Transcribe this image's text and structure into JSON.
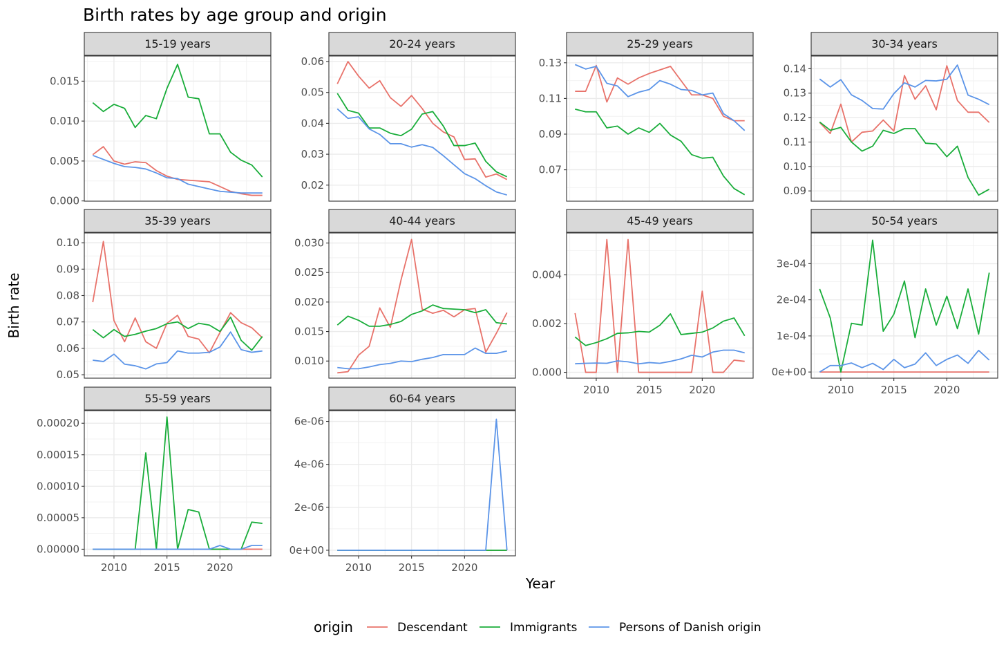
{
  "chart_data": {
    "type": "line",
    "title": "Birth rates by age group and origin",
    "xlabel": "Year",
    "ylabel": "Birth rate",
    "legend": {
      "title": "origin",
      "position": "bottom",
      "entries": [
        "Descendant",
        "Immigrants",
        "Persons of Danish origin"
      ]
    },
    "colors": {
      "Descendant": "#E8726A",
      "Immigrants": "#19AD3A",
      "Persons of Danish origin": "#5B94E8"
    },
    "x": [
      2008,
      2009,
      2010,
      2011,
      2012,
      2013,
      2014,
      2015,
      2016,
      2017,
      2018,
      2019,
      2020,
      2021,
      2022,
      2023,
      2024
    ],
    "xlim": [
      2007.2,
      2024.8
    ],
    "xticks": [
      2010,
      2015,
      2020
    ],
    "facets": [
      {
        "label": "15-19 years",
        "ylim": [
          -3e-05,
          0.01815
        ],
        "yticks": [
          0,
          0.005,
          0.01,
          0.015
        ],
        "ytick_labels": [
          "0.000",
          "0.005",
          "0.010",
          "0.015"
        ],
        "show_x_axis": false,
        "series": [
          {
            "name": "Descendant",
            "values": [
              0.0058,
              0.0068,
              0.005,
              0.0046,
              0.0049,
              0.0048,
              0.0038,
              0.0031,
              0.0027,
              0.0026,
              0.0025,
              0.0024,
              0.0018,
              0.0012,
              0.0009,
              0.0007,
              0.0007
            ]
          },
          {
            "name": "Immigrants",
            "values": [
              0.0123,
              0.0112,
              0.0121,
              0.0116,
              0.0092,
              0.0107,
              0.0103,
              0.0141,
              0.0171,
              0.013,
              0.0128,
              0.0084,
              0.0084,
              0.0061,
              0.0051,
              0.0045,
              0.003
            ]
          },
          {
            "name": "Persons of Danish origin",
            "values": [
              0.0057,
              0.0052,
              0.0047,
              0.0043,
              0.0042,
              0.004,
              0.0035,
              0.0029,
              0.0028,
              0.0021,
              0.0018,
              0.0015,
              0.0012,
              0.0011,
              0.001,
              0.001,
              0.001
            ]
          }
        ]
      },
      {
        "label": "20-24 years",
        "ylim": [
          0.0148,
          0.0618
        ],
        "yticks": [
          0.02,
          0.03,
          0.04,
          0.05,
          0.06
        ],
        "ytick_labels": [
          "0.02",
          "0.03",
          "0.04",
          "0.05",
          "0.06"
        ],
        "show_x_axis": false,
        "series": [
          {
            "name": "Descendant",
            "values": [
              0.0528,
              0.06,
              0.0553,
              0.0514,
              0.0538,
              0.0483,
              0.0455,
              0.049,
              0.0448,
              0.04,
              0.0372,
              0.0356,
              0.0283,
              0.0285,
              0.0226,
              0.0236,
              0.0218
            ]
          },
          {
            "name": "Immigrants",
            "values": [
              0.0497,
              0.0442,
              0.0433,
              0.0385,
              0.0385,
              0.0368,
              0.036,
              0.0381,
              0.043,
              0.0438,
              0.0391,
              0.0328,
              0.0328,
              0.0336,
              0.0277,
              0.0243,
              0.0227
            ]
          },
          {
            "name": "Persons of Danish origin",
            "values": [
              0.0447,
              0.0416,
              0.0421,
              0.0382,
              0.0364,
              0.0334,
              0.0334,
              0.0323,
              0.0331,
              0.0322,
              0.0295,
              0.0266,
              0.0237,
              0.0221,
              0.0198,
              0.0178,
              0.0168
            ]
          }
        ]
      },
      {
        "label": "25-29 years",
        "ylim": [
          0.0524,
          0.1338
        ],
        "yticks": [
          0.07,
          0.09,
          0.11,
          0.13
        ],
        "ytick_labels": [
          "0.07",
          "0.09",
          "0.11",
          "0.13"
        ],
        "show_x_axis": false,
        "series": [
          {
            "name": "Descendant",
            "values": [
              0.114,
              0.114,
              0.1285,
              0.108,
              0.1215,
              0.118,
              0.1215,
              0.124,
              0.126,
              0.128,
              0.12,
              0.112,
              0.112,
              0.11,
              0.1,
              0.0975,
              0.0975
            ]
          },
          {
            "name": "Immigrants",
            "values": [
              0.104,
              0.1025,
              0.1025,
              0.0935,
              0.0945,
              0.09,
              0.0935,
              0.091,
              0.096,
              0.0895,
              0.086,
              0.0785,
              0.0765,
              0.077,
              0.0665,
              0.0595,
              0.056
            ]
          },
          {
            "name": "Persons of Danish origin",
            "values": [
              0.129,
              0.1265,
              0.128,
              0.1185,
              0.117,
              0.111,
              0.1135,
              0.115,
              0.12,
              0.118,
              0.115,
              0.1145,
              0.112,
              0.113,
              0.1015,
              0.0975,
              0.092
            ]
          }
        ]
      },
      {
        "label": "30-34 years",
        "ylim": [
          0.0858,
          0.1452
        ],
        "yticks": [
          0.09,
          0.1,
          0.11,
          0.12,
          0.13,
          0.14
        ],
        "ytick_labels": [
          "0.09",
          "0.10",
          "0.11",
          "0.12",
          "0.13",
          "0.14"
        ],
        "show_x_axis": false,
        "series": [
          {
            "name": "Descendant",
            "values": [
              0.118,
              0.1135,
              0.1255,
              0.11,
              0.114,
              0.1145,
              0.119,
              0.1145,
              0.1372,
              0.1275,
              0.133,
              0.1232,
              0.1412,
              0.127,
              0.1222,
              0.1222,
              0.118
            ]
          },
          {
            "name": "Immigrants",
            "values": [
              0.1182,
              0.1148,
              0.116,
              0.11,
              0.1063,
              0.1083,
              0.1148,
              0.1135,
              0.1155,
              0.1155,
              0.1095,
              0.1092,
              0.104,
              0.1083,
              0.0955,
              0.0883,
              0.0907
            ]
          },
          {
            "name": "Persons of Danish origin",
            "values": [
              0.1358,
              0.1325,
              0.1355,
              0.1293,
              0.127,
              0.1237,
              0.1235,
              0.1298,
              0.1342,
              0.1325,
              0.1352,
              0.135,
              0.1357,
              0.1415,
              0.1292,
              0.1275,
              0.1253
            ]
          }
        ]
      },
      {
        "label": "35-39 years",
        "ylim": [
          0.0487,
          0.1037
        ],
        "yticks": [
          0.05,
          0.06,
          0.07,
          0.08,
          0.09,
          0.1
        ],
        "ytick_labels": [
          "0.05",
          "0.06",
          "0.07",
          "0.08",
          "0.09",
          "0.10"
        ],
        "show_x_axis": false,
        "series": [
          {
            "name": "Descendant",
            "values": [
              0.0775,
              0.1005,
              0.0705,
              0.0625,
              0.0715,
              0.0625,
              0.06,
              0.0695,
              0.0725,
              0.0645,
              0.0635,
              0.0583,
              0.066,
              0.0735,
              0.0697,
              0.0678,
              0.064
            ]
          },
          {
            "name": "Immigrants",
            "values": [
              0.0671,
              0.064,
              0.0671,
              0.0645,
              0.0653,
              0.0665,
              0.0675,
              0.0693,
              0.07,
              0.0675,
              0.0695,
              0.0688,
              0.0664,
              0.0718,
              0.063,
              0.0593,
              0.0645
            ]
          },
          {
            "name": "Persons of Danish origin",
            "values": [
              0.0555,
              0.055,
              0.0578,
              0.054,
              0.0534,
              0.0522,
              0.0541,
              0.0546,
              0.059,
              0.0582,
              0.0582,
              0.0585,
              0.0605,
              0.0662,
              0.0595,
              0.0585,
              0.059
            ]
          }
        ]
      },
      {
        "label": "40-44 years",
        "ylim": [
          0.0071,
          0.0317
        ],
        "yticks": [
          0.01,
          0.015,
          0.02,
          0.025,
          0.03
        ],
        "ytick_labels": [
          "0.010",
          "0.015",
          "0.020",
          "0.025",
          "0.030"
        ],
        "show_x_axis": false,
        "series": [
          {
            "name": "Descendant",
            "values": [
              0.008,
              0.0082,
              0.011,
              0.0125,
              0.019,
              0.0157,
              0.0237,
              0.0306,
              0.0188,
              0.0181,
              0.0186,
              0.0175,
              0.0187,
              0.0189,
              0.0115,
              0.0147,
              0.0182
            ]
          },
          {
            "name": "Immigrants",
            "values": [
              0.0161,
              0.0176,
              0.0169,
              0.0159,
              0.0159,
              0.0162,
              0.0167,
              0.0179,
              0.0185,
              0.0195,
              0.0189,
              0.0188,
              0.0187,
              0.0182,
              0.0187,
              0.0165,
              0.0163
            ]
          },
          {
            "name": "Persons of Danish origin",
            "values": [
              0.0089,
              0.0087,
              0.0087,
              0.009,
              0.0094,
              0.0096,
              0.01,
              0.0099,
              0.0103,
              0.0106,
              0.0111,
              0.0111,
              0.0111,
              0.0122,
              0.0113,
              0.0113,
              0.0117
            ]
          }
        ]
      },
      {
        "label": "45-49 years",
        "ylim": [
          -0.00024,
          0.00572
        ],
        "yticks": [
          0,
          0.002,
          0.004
        ],
        "ytick_labels": [
          "0.000",
          "0.002",
          "0.004"
        ],
        "show_x_axis": true,
        "series": [
          {
            "name": "Descendant",
            "values": [
              0.00243,
              0.0,
              0.0,
              0.00545,
              0.0,
              0.00545,
              0.0,
              0.0,
              0.0,
              0.0,
              0.0,
              0.0,
              0.00333,
              0.0,
              0.0,
              0.0005,
              0.00045
            ]
          },
          {
            "name": "Immigrants",
            "values": [
              0.00145,
              0.0011,
              0.00122,
              0.00138,
              0.0016,
              0.00162,
              0.00168,
              0.00165,
              0.00193,
              0.0024,
              0.00155,
              0.0016,
              0.00165,
              0.00182,
              0.0021,
              0.00223,
              0.0015
            ]
          },
          {
            "name": "Persons of Danish origin",
            "values": [
              0.00035,
              0.00037,
              0.00038,
              0.00037,
              0.00047,
              0.00043,
              0.00035,
              0.0004,
              0.00037,
              0.00045,
              0.00055,
              0.0007,
              0.00063,
              0.00083,
              0.00091,
              0.00091,
              0.0008
            ]
          }
        ]
      },
      {
        "label": "50-54 years",
        "ylim": [
          -1.7e-05,
          0.000385
        ],
        "yticks": [
          0,
          0.0001,
          0.0002,
          0.0003
        ],
        "ytick_labels": [
          "0e+00",
          "1e-04",
          "2e-04",
          "3e-04"
        ],
        "show_x_axis": true,
        "series": [
          {
            "name": "Descendant",
            "values": [
              0,
              0,
              0,
              0,
              0,
              0,
              0,
              0,
              0,
              0,
              0,
              0,
              0,
              0,
              0,
              0,
              0
            ]
          },
          {
            "name": "Immigrants",
            "values": [
              0.00023,
              0.00015,
              0.0,
              0.000135,
              0.00013,
              0.000365,
              0.000113,
              0.00016,
              0.000252,
              9.5e-05,
              0.00023,
              0.00013,
              0.00021,
              0.00012,
              0.00023,
              0.000105,
              0.000275
            ]
          },
          {
            "name": "Persons of Danish origin",
            "values": [
              0.0,
              1.8e-05,
              1.8e-05,
              2.5e-05,
              1.2e-05,
              2.4e-05,
              7e-06,
              3.5e-05,
              1.2e-05,
              2.2e-05,
              5.3e-05,
              1.8e-05,
              3.5e-05,
              4.7e-05,
              2.4e-05,
              6e-05,
              3.3e-05
            ]
          }
        ]
      },
      {
        "label": "55-59 years",
        "ylim": [
          -1.05e-05,
          0.00022
        ],
        "yticks": [
          0,
          5e-05,
          0.0001,
          0.00015,
          0.0002
        ],
        "ytick_labels": [
          "0.00000",
          "0.00005",
          "0.00010",
          "0.00015",
          "0.00020"
        ],
        "show_x_axis": true,
        "series": [
          {
            "name": "Descendant",
            "values": [
              0,
              0,
              0,
              0,
              0,
              0,
              0,
              0,
              0,
              0,
              0,
              0,
              0,
              0,
              0,
              0,
              0
            ]
          },
          {
            "name": "Immigrants",
            "values": [
              0,
              0,
              0,
              0,
              0,
              0.000153,
              0,
              0.00021,
              0,
              6.3e-05,
              5.9e-05,
              0,
              0,
              0,
              0,
              4.3e-05,
              4.1e-05
            ]
          },
          {
            "name": "Persons of Danish origin",
            "values": [
              0,
              0,
              0,
              0,
              0,
              0,
              0,
              0,
              0,
              0,
              0,
              0,
              6e-06,
              0,
              0,
              6e-06,
              6e-06
            ]
          }
        ]
      },
      {
        "label": "60-64 years",
        "ylim": [
          -2.6e-07,
          6.5e-06
        ],
        "yticks": [
          0,
          2e-06,
          4e-06,
          6e-06
        ],
        "ytick_labels": [
          "0e+00",
          "2e-06",
          "4e-06",
          "6e-06"
        ],
        "show_x_axis": true,
        "series": [
          {
            "name": "Descendant",
            "values": [
              0,
              0,
              0,
              0,
              0,
              0,
              0,
              0,
              0,
              0,
              0,
              0,
              0,
              0,
              0,
              0,
              0
            ]
          },
          {
            "name": "Immigrants",
            "values": [
              0,
              0,
              0,
              0,
              0,
              0,
              0,
              0,
              0,
              0,
              0,
              0,
              0,
              0,
              0,
              0,
              0
            ]
          },
          {
            "name": "Persons of Danish origin",
            "values": [
              0,
              0,
              0,
              0,
              0,
              0,
              0,
              0,
              0,
              0,
              0,
              0,
              0,
              0,
              0,
              6.1e-06,
              0
            ]
          }
        ]
      }
    ]
  }
}
